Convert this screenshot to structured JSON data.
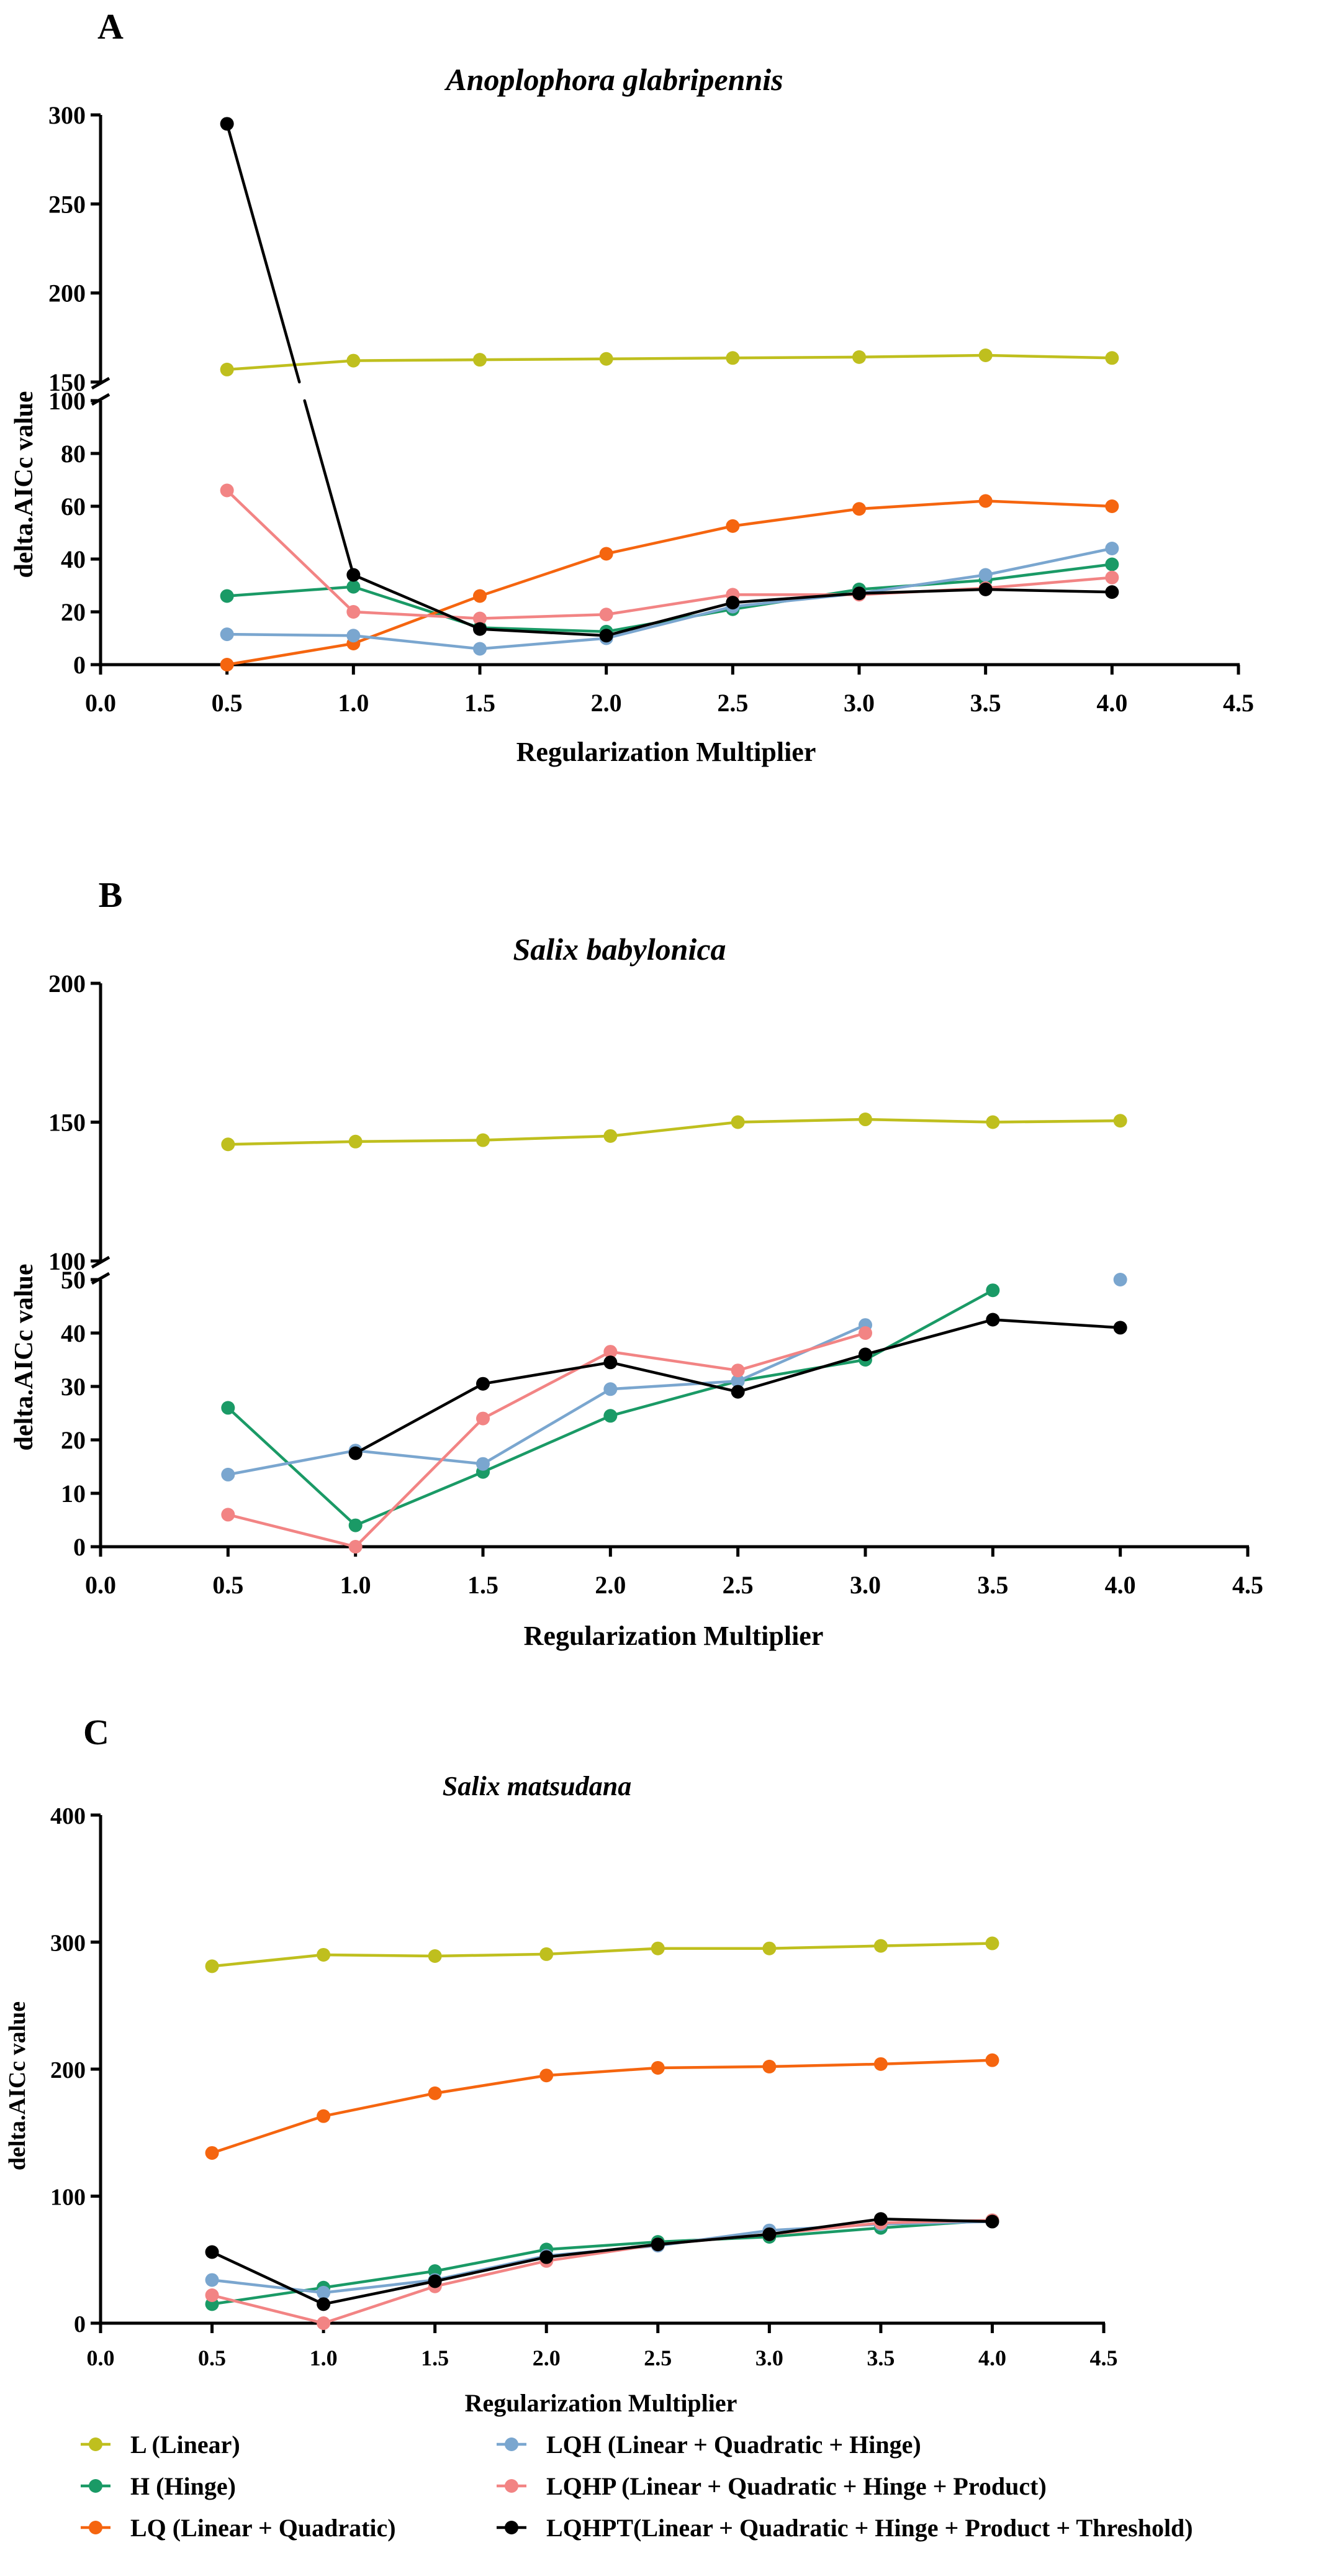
{
  "legend": [
    {
      "label": "L (Linear)",
      "color": "#bfbf1e"
    },
    {
      "label": "H (Hinge)",
      "color": "#1a9a66"
    },
    {
      "label": "LQ (Linear + Quadratic)",
      "color": "#f5650f"
    },
    {
      "label": "LQH (Linear + Quadratic + Hinge)",
      "color": "#7aa6cf"
    },
    {
      "label": "LQHP (Linear + Quadratic + Hinge + Product)",
      "color": "#f28484"
    },
    {
      "label": "LQHPT(Linear + Quadratic + Hinge + Product + Threshold)",
      "color": "#000000"
    }
  ],
  "chart_data": [
    {
      "type": "line",
      "panel": "A",
      "title": "Anoplophora glabripennis",
      "xlabel": "Regularization Multiplier",
      "ylabel": "delta.AICc value",
      "xlim": [
        0,
        4.5
      ],
      "xticks": [
        "0.0",
        "0.5",
        "1.0",
        "1.5",
        "2.0",
        "2.5",
        "3.0",
        "3.5",
        "4.0",
        "4.5"
      ],
      "y_axis_break": {
        "lower_range": [
          0,
          100
        ],
        "upper_range": [
          150,
          300
        ]
      },
      "yticks_lower": [
        "0",
        "20",
        "40",
        "60",
        "80",
        "100"
      ],
      "yticks_upper": [
        "150",
        "200",
        "250",
        "300"
      ],
      "x": [
        0.5,
        1.0,
        1.5,
        2.0,
        2.5,
        3.0,
        3.5,
        4.0
      ],
      "series": [
        {
          "name": "L (Linear)",
          "values": [
            157,
            162,
            162.5,
            163,
            163.5,
            164,
            165,
            163.5
          ]
        },
        {
          "name": "H (Hinge)",
          "values": [
            26,
            29.5,
            14,
            12.5,
            21,
            28.5,
            32,
            38
          ]
        },
        {
          "name": "LQ (Linear + Quadratic)",
          "values": [
            0,
            8,
            26,
            42,
            52.5,
            59,
            62,
            60
          ]
        },
        {
          "name": "LQH (Linear + Quadratic + Hinge)",
          "values": [
            11.5,
            11,
            6,
            10,
            22,
            27,
            34,
            44
          ]
        },
        {
          "name": "LQHP (Linear + Quadratic + Hinge + Product)",
          "values": [
            66,
            20,
            17.5,
            19,
            26.5,
            26.5,
            29,
            33
          ]
        },
        {
          "name": "LQHPT(Linear + Quadratic + Hinge + Product + Threshold)",
          "values": [
            295,
            34,
            13.5,
            11,
            23.5,
            27,
            28.5,
            27.5
          ]
        }
      ]
    },
    {
      "type": "line",
      "panel": "B",
      "title": "Salix babylonica",
      "xlabel": "Regularization Multiplier",
      "ylabel": "delta.AICc value",
      "xlim": [
        0,
        4.5
      ],
      "xticks": [
        "0.0",
        "0.5",
        "1.0",
        "1.5",
        "2.0",
        "2.5",
        "3.0",
        "3.5",
        "4.0",
        "4.5"
      ],
      "y_axis_break": {
        "lower_range": [
          0,
          50
        ],
        "upper_range": [
          100,
          200
        ]
      },
      "yticks_lower": [
        "0",
        "10",
        "20",
        "30",
        "40",
        "50"
      ],
      "yticks_upper": [
        "100",
        "150",
        "200"
      ],
      "x": [
        0.5,
        1.0,
        1.5,
        2.0,
        2.5,
        3.0,
        3.5,
        4.0
      ],
      "series": [
        {
          "name": "L (Linear)",
          "values": [
            142,
            143,
            143.5,
            145,
            150,
            151,
            150,
            150.5
          ]
        },
        {
          "name": "H (Hinge)",
          "values": [
            26,
            4,
            14,
            24.5,
            31,
            35,
            48,
            null
          ]
        },
        {
          "name": "LQ (Linear + Quadratic)",
          "values": [
            null,
            null,
            null,
            null,
            null,
            null,
            null,
            null
          ]
        },
        {
          "name": "LQH (Linear + Quadratic + Hinge)",
          "values": [
            13.5,
            18,
            15.5,
            29.5,
            31,
            41.5,
            null,
            50
          ]
        },
        {
          "name": "LQHP (Linear + Quadratic + Hinge + Product)",
          "values": [
            6,
            0,
            24,
            36.5,
            33,
            40,
            null,
            null
          ]
        },
        {
          "name": "LQHPT(Linear + Quadratic + Hinge + Product + Threshold)",
          "values": [
            null,
            17.5,
            30.5,
            34.5,
            29,
            36,
            42.5,
            41
          ]
        }
      ]
    },
    {
      "type": "line",
      "panel": "C",
      "title": "Salix matsudana",
      "xlabel": "Regularization Multiplier",
      "ylabel": "delta.AICc value",
      "xlim": [
        0,
        4.5
      ],
      "ylim": [
        0,
        400
      ],
      "xticks": [
        "0.0",
        "0.5",
        "1.0",
        "1.5",
        "2.0",
        "2.5",
        "3.0",
        "3.5",
        "4.0",
        "4.5"
      ],
      "yticks": [
        "0",
        "100",
        "200",
        "300",
        "400"
      ],
      "x": [
        0.5,
        1.0,
        1.5,
        2.0,
        2.5,
        3.0,
        3.5,
        4.0
      ],
      "series": [
        {
          "name": "L (Linear)",
          "values": [
            281,
            290,
            289,
            290.5,
            295,
            295,
            297,
            299
          ]
        },
        {
          "name": "H (Hinge)",
          "values": [
            15,
            28,
            41,
            58,
            64,
            68,
            75,
            81
          ]
        },
        {
          "name": "LQ (Linear + Quadratic)",
          "values": [
            134,
            163,
            181,
            195,
            201,
            202,
            204,
            207
          ]
        },
        {
          "name": "LQH (Linear + Quadratic + Hinge)",
          "values": [
            34,
            24,
            34,
            53,
            61,
            73,
            78,
            80
          ]
        },
        {
          "name": "LQHP (Linear + Quadratic + Hinge + Product)",
          "values": [
            22,
            0,
            29,
            49,
            62,
            70,
            79,
            81
          ]
        },
        {
          "name": "LQHPT(Linear + Quadratic + Hinge + Product + Threshold)",
          "values": [
            56,
            15,
            33,
            52,
            62,
            70,
            82,
            80
          ]
        }
      ]
    }
  ]
}
